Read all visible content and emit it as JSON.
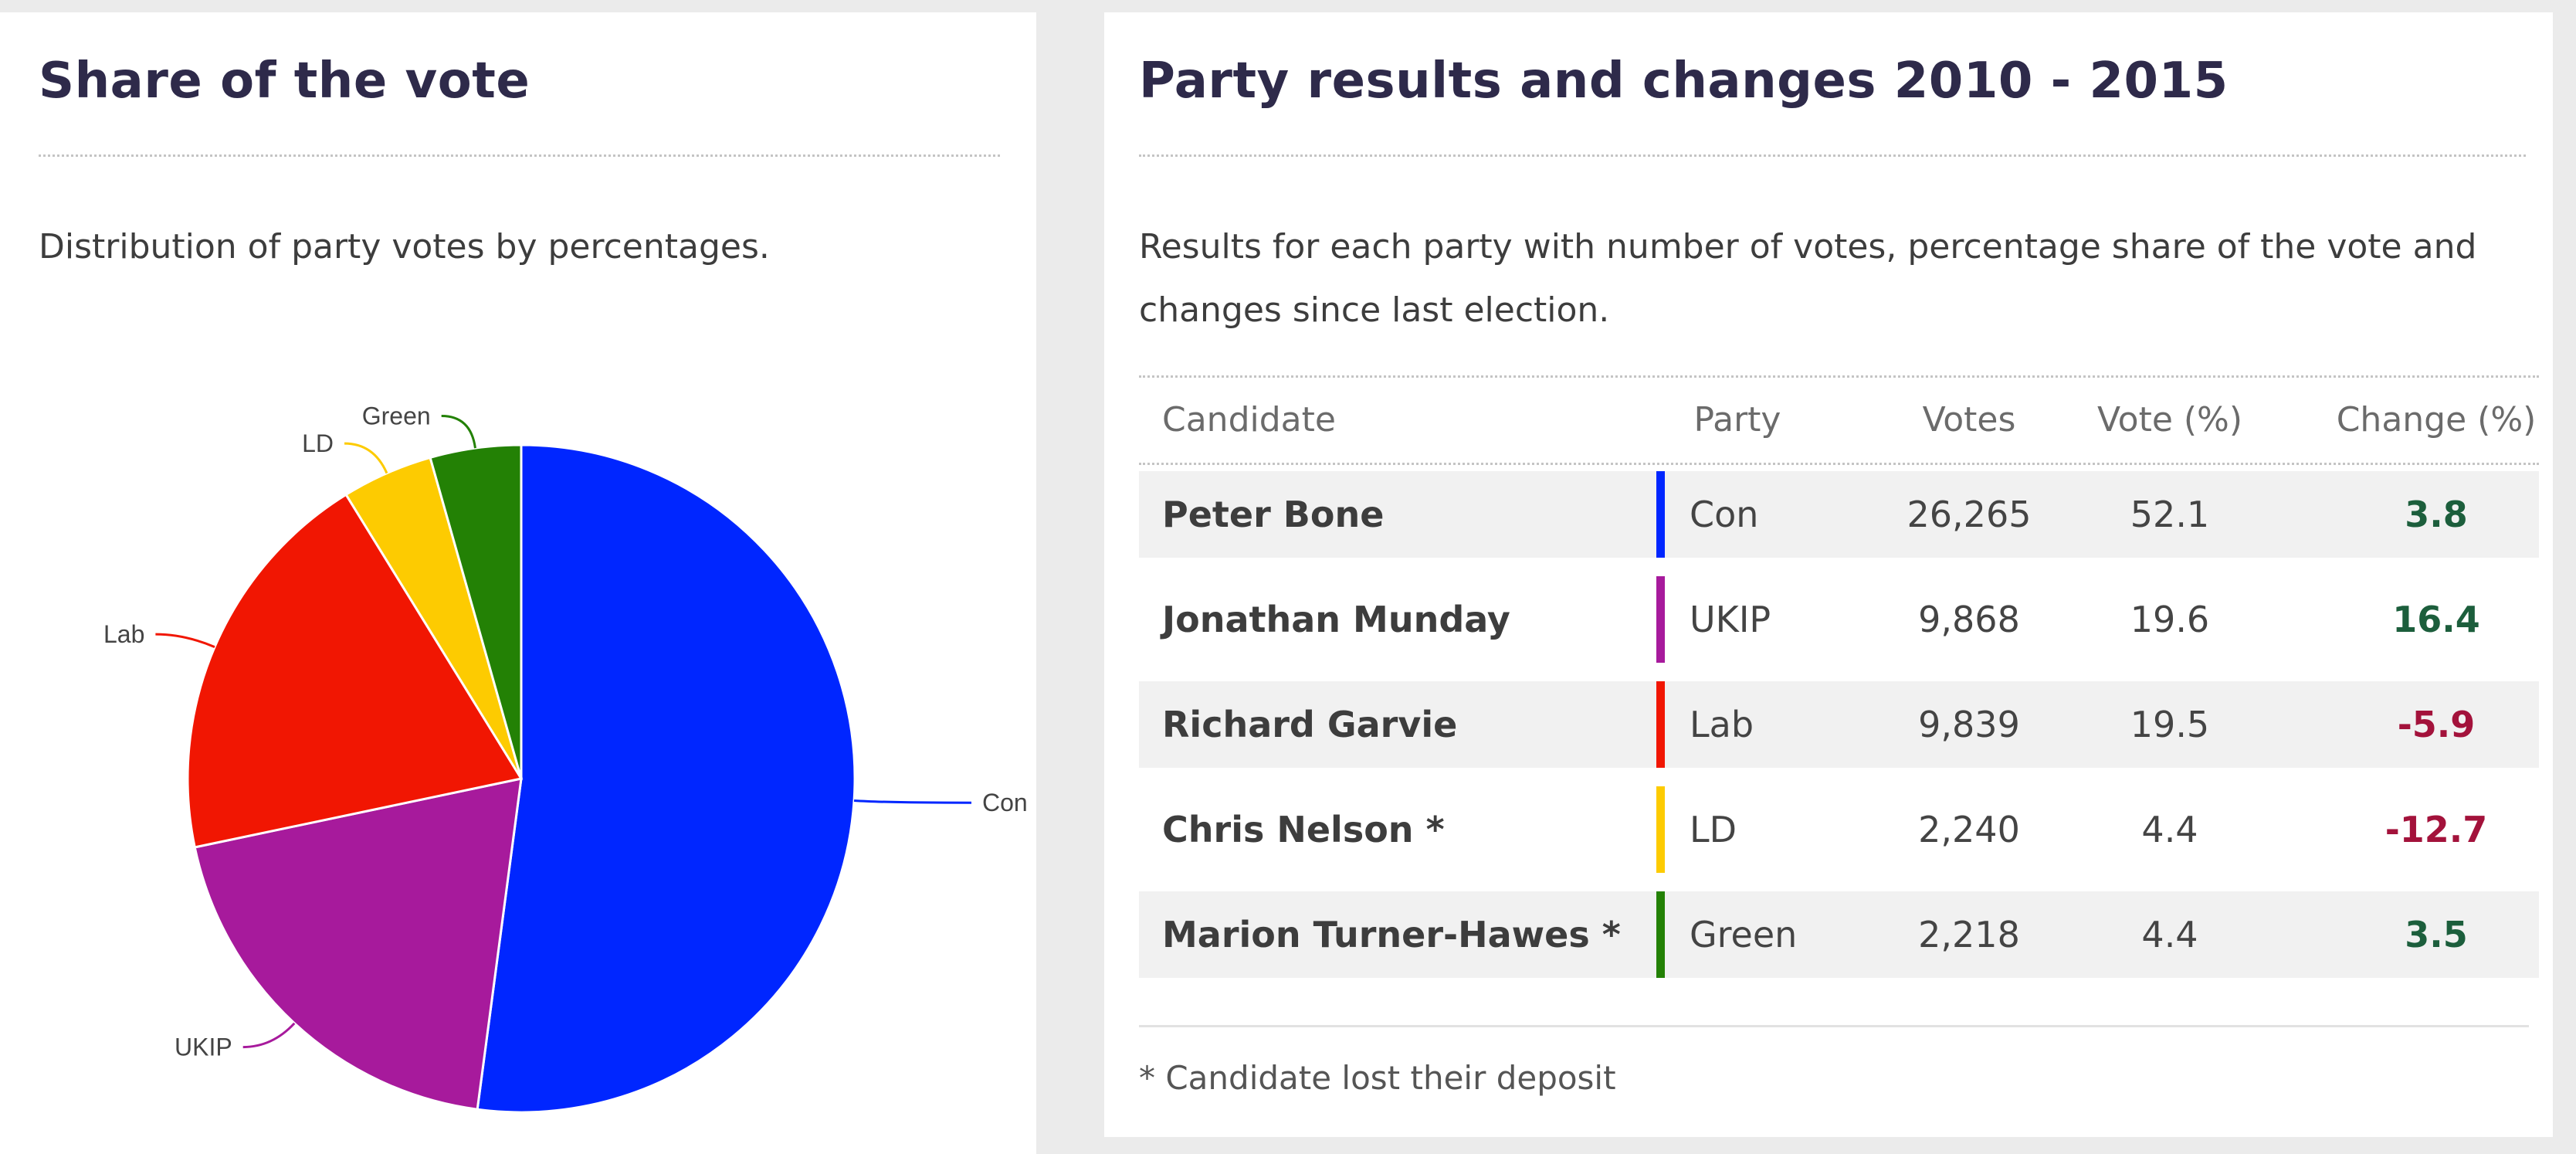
{
  "share_panel": {
    "title": "Share of the vote",
    "description": "Distribution of party votes by percentages."
  },
  "results_panel": {
    "title": "Party results and changes 2010 - 2015",
    "description": "Results for each party with number of votes, percentage share of the vote and changes since last election.",
    "columns": {
      "candidate": "Candidate",
      "party": "Party",
      "votes": "Votes",
      "share": "Vote (%)",
      "change": "Change (%)"
    },
    "rows": [
      {
        "candidate": "Peter Bone",
        "party": "Con",
        "votes": "26,265",
        "share": "52.1",
        "change": "3.8",
        "color": "#0026ff",
        "trend": "pos"
      },
      {
        "candidate": "Jonathan Munday",
        "party": "UKIP",
        "votes": "9,868",
        "share": "19.6",
        "change": "16.4",
        "color": "#a71a9c",
        "trend": "pos"
      },
      {
        "candidate": "Richard Garvie",
        "party": "Lab",
        "votes": "9,839",
        "share": "19.5",
        "change": "-5.9",
        "color": "#f11602",
        "trend": "neg"
      },
      {
        "candidate": "Chris Nelson *",
        "party": "LD",
        "votes": "2,240",
        "share": "4.4",
        "change": "-12.7",
        "color": "#fdcb01",
        "trend": "neg"
      },
      {
        "candidate": "Marion Turner-Hawes *",
        "party": "Green",
        "votes": "2,218",
        "share": "4.4",
        "change": "3.5",
        "color": "#238105",
        "trend": "pos"
      }
    ],
    "footnote": "* Candidate lost their deposit"
  },
  "chart_data": {
    "type": "pie",
    "labels": [
      "Con",
      "UKIP",
      "Lab",
      "LD",
      "Green"
    ],
    "values": [
      52.1,
      19.6,
      19.5,
      4.4,
      4.4
    ],
    "colors": [
      "#0026ff",
      "#a71a9c",
      "#f11602",
      "#fdcb01",
      "#238105"
    ],
    "start": "12 o'clock",
    "direction": "clockwise"
  }
}
